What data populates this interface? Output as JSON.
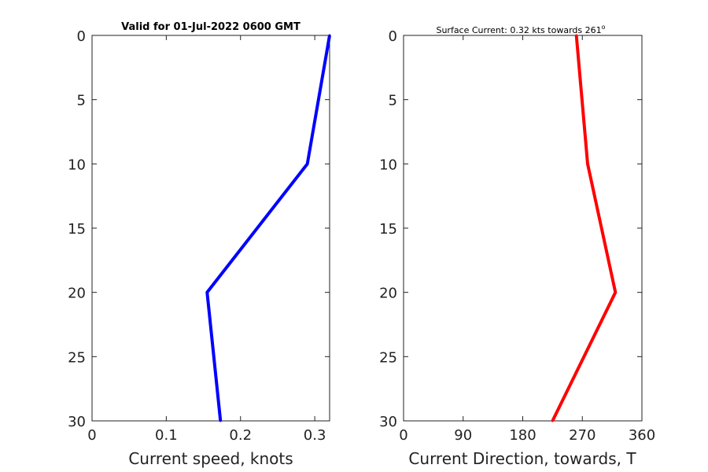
{
  "chart_data": [
    {
      "type": "line",
      "title": "Valid for 01-Jul-2022 0600 GMT",
      "xlabel": "Current speed, knots",
      "ylabel": "",
      "xlim": [
        0,
        0.32
      ],
      "ylim": [
        0,
        30
      ],
      "y_reversed": true,
      "x_ticks": [
        "0",
        "0.1",
        "0.2",
        "0.3"
      ],
      "x_tick_values": [
        0,
        0.1,
        0.2,
        0.3
      ],
      "y_ticks": [
        "0",
        "5",
        "10",
        "15",
        "20",
        "25",
        "30"
      ],
      "y_tick_values": [
        0,
        5,
        10,
        15,
        20,
        25,
        30
      ],
      "grid": false,
      "series": [
        {
          "color": "#0000ff",
          "x": [
            0.32,
            0.29,
            0.155,
            0.173
          ],
          "y": [
            0,
            10,
            20,
            30
          ]
        }
      ]
    },
    {
      "type": "line",
      "title": "Surface Current: 0.32 kts towards 261",
      "title_suffix": "o",
      "xlabel": "Current Direction, towards, T",
      "ylabel": "",
      "xlim": [
        0,
        360
      ],
      "ylim": [
        0,
        30
      ],
      "y_reversed": true,
      "x_ticks": [
        "0",
        "90",
        "180",
        "270",
        "360"
      ],
      "x_tick_values": [
        0,
        90,
        180,
        270,
        360
      ],
      "y_ticks": [
        "0",
        "5",
        "10",
        "15",
        "20",
        "25",
        "30"
      ],
      "y_tick_values": [
        0,
        5,
        10,
        15,
        20,
        25,
        30
      ],
      "grid": false,
      "series": [
        {
          "color": "#ff0000",
          "x": [
            261,
            278,
            320,
            225
          ],
          "y": [
            0,
            10,
            20,
            30
          ]
        }
      ]
    }
  ]
}
